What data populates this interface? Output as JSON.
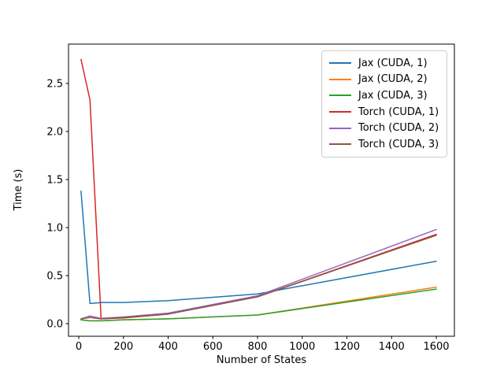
{
  "figure": {
    "background": "#ffffff"
  },
  "chart_data": {
    "type": "line",
    "title": "",
    "xlabel": "Number of States",
    "ylabel": "Time (s)",
    "x": [
      10,
      50,
      100,
      200,
      400,
      800,
      1600
    ],
    "series": [
      {
        "name": "Jax (CUDA, 1)",
        "color": "#1f77b4",
        "values": [
          1.38,
          0.21,
          0.22,
          0.22,
          0.24,
          0.31,
          0.65
        ]
      },
      {
        "name": "Jax (CUDA, 2)",
        "color": "#ff7f0e",
        "values": [
          0.04,
          0.03,
          0.03,
          0.04,
          0.05,
          0.09,
          0.38
        ]
      },
      {
        "name": "Jax (CUDA, 3)",
        "color": "#2ca02c",
        "values": [
          0.04,
          0.03,
          0.03,
          0.04,
          0.05,
          0.09,
          0.36
        ]
      },
      {
        "name": "Torch (CUDA, 1)",
        "color": "#d62728",
        "values": [
          2.75,
          2.33,
          0.05,
          0.06,
          0.1,
          0.28,
          0.93
        ]
      },
      {
        "name": "Torch (CUDA, 2)",
        "color": "#9467bd",
        "values": [
          0.05,
          0.08,
          0.055,
          0.07,
          0.11,
          0.29,
          0.98
        ]
      },
      {
        "name": "Torch (CUDA, 3)",
        "color": "#8c564b",
        "values": [
          0.05,
          0.065,
          0.05,
          0.065,
          0.1,
          0.28,
          0.92
        ]
      }
    ],
    "x_ticks": [
      0,
      200,
      400,
      600,
      800,
      1000,
      1200,
      1400,
      1600
    ],
    "x_tick_labels": [
      "0",
      "200",
      "400",
      "600",
      "800",
      "1000",
      "1200",
      "1400",
      "1600"
    ],
    "y_ticks": [
      0.0,
      0.5,
      1.0,
      1.5,
      2.0,
      2.5
    ],
    "y_tick_labels": [
      "0.0",
      "0.5",
      "1.0",
      "1.5",
      "2.0",
      "2.5"
    ],
    "xlim": [
      -46,
      1681
    ],
    "ylim": [
      -0.131,
      2.91
    ],
    "grid": false,
    "legend_position": "upper right",
    "line_width": 1.5,
    "spine_color": "#000000"
  }
}
